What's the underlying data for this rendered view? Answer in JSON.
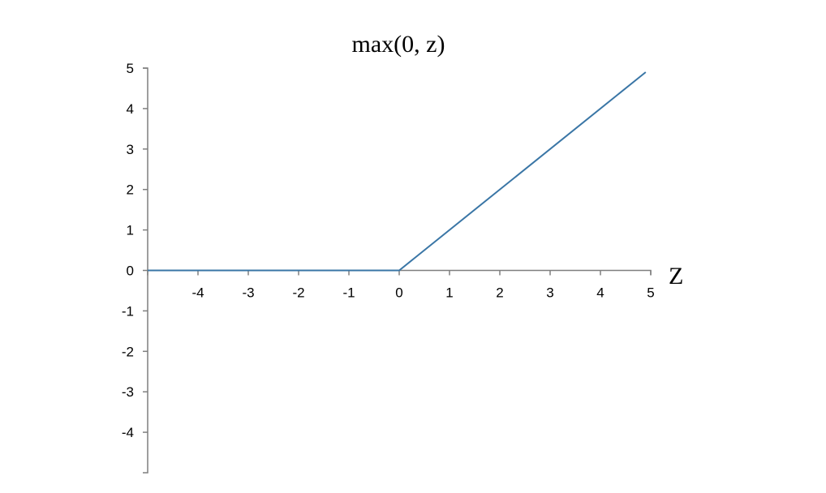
{
  "chart_data": {
    "type": "line",
    "title": "max(0, z)",
    "xlabel": "Z",
    "ylabel": "",
    "xlim": [
      -5,
      5
    ],
    "ylim": [
      -5,
      5
    ],
    "x_ticks": [
      -4,
      -3,
      -2,
      -1,
      0,
      1,
      2,
      3,
      4,
      5
    ],
    "y_ticks": [
      -4,
      -3,
      -2,
      -1,
      0,
      1,
      2,
      3,
      4,
      5
    ],
    "grid": false,
    "series": [
      {
        "color": "#3a76a6",
        "x": [
          -5,
          0,
          4.9
        ],
        "y": [
          0,
          0,
          4.9
        ]
      }
    ]
  }
}
